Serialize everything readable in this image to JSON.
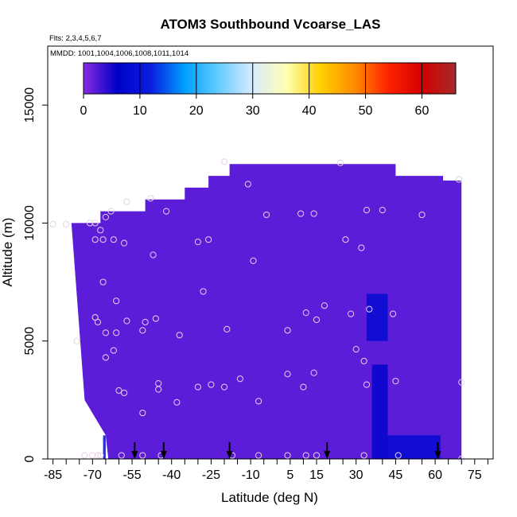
{
  "chart_data": {
    "type": "heatmap",
    "title": "ATOM3 Southbound Vcoarse_LAS",
    "subtitle_flights": "Flts: 2,3,4,5,6,7",
    "subtitle_dates": "MMDD: 1001,1004,1006,1008,1011,1014",
    "xlabel": "Latitude (deg N)",
    "ylabel": "Altitude (m)",
    "xlim": [
      -87,
      82
    ],
    "ylim": [
      0,
      17500
    ],
    "x_ticks": [
      -85,
      -70,
      -55,
      -40,
      -25,
      -10,
      5,
      15,
      30,
      45,
      60,
      75
    ],
    "x_tick_labels": [
      "-85",
      "-70",
      "-55",
      "-40",
      "-25",
      "-10",
      "5",
      "15",
      "30",
      "45",
      "60",
      "75"
    ],
    "x_minor_ticks": [
      -80,
      -75,
      -65,
      -60,
      -50,
      -45,
      -35,
      -30,
      -20,
      -15,
      -5,
      0,
      10,
      20,
      25,
      35,
      40,
      50,
      55,
      65,
      70,
      80
    ],
    "y_ticks": [
      0,
      5000,
      10000,
      15000
    ],
    "y_tick_labels": [
      "0",
      "5000",
      "10000",
      "15000"
    ],
    "colorbar": {
      "min": 0,
      "max": 66,
      "ticks": [
        0,
        10,
        20,
        30,
        40,
        50,
        60
      ],
      "tick_labels": [
        "0",
        "10",
        "20",
        "30",
        "40",
        "50",
        "60"
      ],
      "colors": [
        "#8a2be2",
        "#0000c8",
        "#0a1fe0",
        "#00a0ff",
        "#66ccff",
        "#d8ecff",
        "#ffffb0",
        "#ffd000",
        "#ff8c00",
        "#ff2200",
        "#d40000",
        "#a52a2a"
      ]
    },
    "domain_outline": {
      "lat": [
        -78,
        -67,
        -67,
        -50,
        -50,
        -35,
        -35,
        -26,
        -26,
        -18,
        -18,
        22,
        22,
        45,
        45,
        63,
        63,
        70,
        70,
        70,
        70,
        68,
        68,
        -64,
        -64,
        -65,
        -65,
        -73,
        -78
      ],
      "alt": [
        10000,
        10000,
        10500,
        10500,
        11000,
        11000,
        11500,
        11500,
        12000,
        12000,
        12500,
        12500,
        12500,
        12500,
        12000,
        12000,
        11800,
        11800,
        0,
        0,
        0,
        0,
        0,
        0,
        0,
        1000,
        1000,
        2500,
        10000
      ]
    },
    "background_value": 2,
    "enhanced_regions": [
      {
        "lat": [
          34,
          42
        ],
        "alt": [
          5000,
          7000
        ],
        "value": 8
      },
      {
        "lat": [
          42,
          62
        ],
        "alt": [
          0,
          1000
        ],
        "value": 8
      },
      {
        "lat": [
          36,
          42
        ],
        "alt": [
          0,
          4000
        ],
        "value": 7
      },
      {
        "lat": [
          -66,
          -65
        ],
        "alt": [
          0,
          1000
        ],
        "value": 8
      }
    ],
    "observations": [
      {
        "lat": -85,
        "alt": 9950
      },
      {
        "lat": -80,
        "alt": 9950
      },
      {
        "lat": -71,
        "alt": 10000
      },
      {
        "lat": -69,
        "alt": 10000
      },
      {
        "lat": -67,
        "alt": 9700
      },
      {
        "lat": -65,
        "alt": 10250
      },
      {
        "lat": -63,
        "alt": 10500
      },
      {
        "lat": -57,
        "alt": 10900
      },
      {
        "lat": -48,
        "alt": 11050
      },
      {
        "lat": -42,
        "alt": 10500
      },
      {
        "lat": -69,
        "alt": 9300
      },
      {
        "lat": -66,
        "alt": 9300
      },
      {
        "lat": -62,
        "alt": 9300
      },
      {
        "lat": -58,
        "alt": 9150
      },
      {
        "lat": -47,
        "alt": 8650
      },
      {
        "lat": -30,
        "alt": 9200
      },
      {
        "lat": -26,
        "alt": 9300
      },
      {
        "lat": -20,
        "alt": 12600
      },
      {
        "lat": -11,
        "alt": 11650
      },
      {
        "lat": -4,
        "alt": 10350
      },
      {
        "lat": 9,
        "alt": 10400
      },
      {
        "lat": 14,
        "alt": 10400
      },
      {
        "lat": 24,
        "alt": 12550
      },
      {
        "lat": 34,
        "alt": 10550
      },
      {
        "lat": 40,
        "alt": 10550
      },
      {
        "lat": 55,
        "alt": 10350
      },
      {
        "lat": 69,
        "alt": 11850
      },
      {
        "lat": -9,
        "alt": 8400
      },
      {
        "lat": 26,
        "alt": 9300
      },
      {
        "lat": 32,
        "alt": 8950
      },
      {
        "lat": -66,
        "alt": 7500
      },
      {
        "lat": -61,
        "alt": 6700
      },
      {
        "lat": -28,
        "alt": 7100
      },
      {
        "lat": 18,
        "alt": 6500
      },
      {
        "lat": 35,
        "alt": 6350
      },
      {
        "lat": 44,
        "alt": 6150
      },
      {
        "lat": 11,
        "alt": 6200
      },
      {
        "lat": 15,
        "alt": 5900
      },
      {
        "lat": 28,
        "alt": 6150
      },
      {
        "lat": -69,
        "alt": 6000
      },
      {
        "lat": -68,
        "alt": 5800
      },
      {
        "lat": -57,
        "alt": 5850
      },
      {
        "lat": -50,
        "alt": 5800
      },
      {
        "lat": -46,
        "alt": 5950
      },
      {
        "lat": -76,
        "alt": 5000
      },
      {
        "lat": -65,
        "alt": 5350
      },
      {
        "lat": -61,
        "alt": 5350
      },
      {
        "lat": -51,
        "alt": 5450
      },
      {
        "lat": -37,
        "alt": 5250
      },
      {
        "lat": -19,
        "alt": 5500
      },
      {
        "lat": 4,
        "alt": 5450
      },
      {
        "lat": -65,
        "alt": 4300
      },
      {
        "lat": -62,
        "alt": 4600
      },
      {
        "lat": 30,
        "alt": 4650
      },
      {
        "lat": 33,
        "alt": 4150
      },
      {
        "lat": 4,
        "alt": 3600
      },
      {
        "lat": 14,
        "alt": 3650
      },
      {
        "lat": -14,
        "alt": 3400
      },
      {
        "lat": -45,
        "alt": 3200
      },
      {
        "lat": -45,
        "alt": 2950
      },
      {
        "lat": -30,
        "alt": 3050
      },
      {
        "lat": -25,
        "alt": 3150
      },
      {
        "lat": -20,
        "alt": 3050
      },
      {
        "lat": 10,
        "alt": 3050
      },
      {
        "lat": 34,
        "alt": 3150
      },
      {
        "lat": 45,
        "alt": 3300
      },
      {
        "lat": 70,
        "alt": 3250
      },
      {
        "lat": -60,
        "alt": 2900
      },
      {
        "lat": -58,
        "alt": 2800
      },
      {
        "lat": -38,
        "alt": 2400
      },
      {
        "lat": -7,
        "alt": 2450
      },
      {
        "lat": -51,
        "alt": 1950
      },
      {
        "lat": -73,
        "alt": 150
      },
      {
        "lat": -70,
        "alt": 150
      },
      {
        "lat": -68,
        "alt": 150
      },
      {
        "lat": -67,
        "alt": 150
      },
      {
        "lat": -59,
        "alt": 150
      },
      {
        "lat": -51,
        "alt": 150
      },
      {
        "lat": -44,
        "alt": 150
      },
      {
        "lat": -17,
        "alt": 150
      },
      {
        "lat": -7,
        "alt": 150
      },
      {
        "lat": 4,
        "alt": 150
      },
      {
        "lat": 11,
        "alt": 150
      },
      {
        "lat": 15,
        "alt": 150
      },
      {
        "lat": 33,
        "alt": 150
      },
      {
        "lat": 46,
        "alt": 150
      },
      {
        "lat": 70,
        "alt": 0
      }
    ],
    "flight_markers_lat": [
      -54,
      -43,
      -18,
      19,
      61
    ]
  }
}
